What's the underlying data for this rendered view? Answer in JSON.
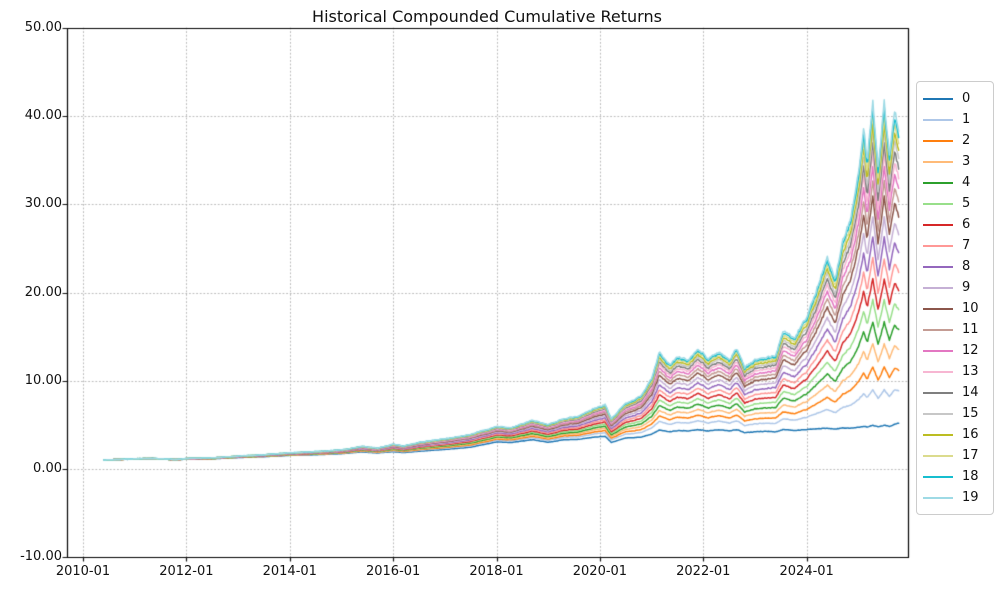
{
  "figure": {
    "background": "#ffffff"
  },
  "chart_data": {
    "type": "line",
    "title": "Historical Compounded Cumulative Returns",
    "xlabel": "",
    "ylabel": "",
    "legend_position": "outside right",
    "grid": "dotted, both axes",
    "ylim": [
      -10,
      50
    ],
    "xlim_years": [
      2009.69,
      2025.96
    ],
    "y_ticks": [
      -10,
      0,
      10,
      20,
      30,
      40,
      50
    ],
    "y_tick_labels": [
      "-10.00",
      "0.00",
      "10.00",
      "20.00",
      "30.00",
      "40.00",
      "50.00"
    ],
    "x_tick_years": [
      2010,
      2012,
      2014,
      2016,
      2018,
      2020,
      2022,
      2024
    ],
    "x_tick_labels": [
      "2010-01",
      "2012-01",
      "2014-01",
      "2016-01",
      "2018-01",
      "2020-01",
      "2022-01",
      "2024-01"
    ],
    "start_value": 1.0,
    "x_years": [
      2010.4,
      2010.7,
      2011.0,
      2011.3,
      2011.6,
      2011.8,
      2012.0,
      2012.5,
      2013.0,
      2013.5,
      2014.0,
      2014.5,
      2015.0,
      2015.4,
      2015.7,
      2016.0,
      2016.2,
      2016.5,
      2017.0,
      2017.5,
      2018.0,
      2018.3,
      2018.7,
      2019.0,
      2019.3,
      2019.6,
      2019.9,
      2020.1,
      2020.22,
      2020.5,
      2020.8,
      2021.0,
      2021.15,
      2021.35,
      2021.5,
      2021.7,
      2021.9,
      2022.1,
      2022.3,
      2022.5,
      2022.65,
      2022.8,
      2023.0,
      2023.2,
      2023.4,
      2023.55,
      2023.75,
      2024.0,
      2024.2,
      2024.4,
      2024.55,
      2024.7,
      2024.85,
      2025.0,
      2025.1,
      2025.17,
      2025.28,
      2025.38,
      2025.5,
      2025.6,
      2025.7,
      2025.78
    ],
    "model": {
      "description": "fan of 20 correlated curves: value_i(t) = base(t) + (top(t) - base(t)) * weight_i; base = series 0, top = series 19",
      "base": [
        1.0,
        1.05,
        1.1,
        1.12,
        1.08,
        1.02,
        1.1,
        1.14,
        1.28,
        1.38,
        1.52,
        1.6,
        1.72,
        1.92,
        1.8,
        1.95,
        1.85,
        2.0,
        2.2,
        2.45,
        3.05,
        3.0,
        3.3,
        3.0,
        3.3,
        3.35,
        3.6,
        3.7,
        3.0,
        3.5,
        3.6,
        3.95,
        4.4,
        4.2,
        4.35,
        4.3,
        4.45,
        4.3,
        4.45,
        4.3,
        4.45,
        4.1,
        4.2,
        4.25,
        4.2,
        4.45,
        4.35,
        4.45,
        4.55,
        4.6,
        4.5,
        4.65,
        4.6,
        4.7,
        4.8,
        4.75,
        4.95,
        4.75,
        4.95,
        4.8,
        5.05,
        5.2
      ],
      "top": [
        1.0,
        1.07,
        1.15,
        1.18,
        1.12,
        1.05,
        1.18,
        1.25,
        1.45,
        1.6,
        1.82,
        1.95,
        2.15,
        2.55,
        2.35,
        2.8,
        2.6,
        3.0,
        3.4,
        3.9,
        4.8,
        4.7,
        5.5,
        5.0,
        5.7,
        6.0,
        6.9,
        7.3,
        5.7,
        7.4,
        8.3,
        10.3,
        13.2,
        11.8,
        12.8,
        12.4,
        13.6,
        12.5,
        13.3,
        12.4,
        13.7,
        11.5,
        12.4,
        12.6,
        12.9,
        15.6,
        14.8,
        17.2,
        20.5,
        24.0,
        21.5,
        26.0,
        28.5,
        33.5,
        38.5,
        35.0,
        42.0,
        34.0,
        41.5,
        35.5,
        40.5,
        38.5
      ]
    },
    "series": [
      {
        "name": "0",
        "color": "#1f77b4",
        "weight": 0.0,
        "end_value": 5.2
      },
      {
        "name": "1",
        "color": "#aec7e8",
        "weight": 0.11,
        "end_value": 8.9
      },
      {
        "name": "2",
        "color": "#ff7f0e",
        "weight": 0.18,
        "end_value": 11.2
      },
      {
        "name": "3",
        "color": "#ffbb78",
        "weight": 0.251,
        "end_value": 13.6
      },
      {
        "name": "4",
        "color": "#2ca02c",
        "weight": 0.318,
        "end_value": 15.8
      },
      {
        "name": "5",
        "color": "#98df8a",
        "weight": 0.386,
        "end_value": 18.1
      },
      {
        "name": "6",
        "color": "#d62728",
        "weight": 0.451,
        "end_value": 20.2
      },
      {
        "name": "7",
        "color": "#ff9896",
        "weight": 0.515,
        "end_value": 22.4
      },
      {
        "name": "8",
        "color": "#9467bd",
        "weight": 0.58,
        "end_value": 24.5
      },
      {
        "name": "9",
        "color": "#c5b0d5",
        "weight": 0.645,
        "end_value": 26.7
      },
      {
        "name": "10",
        "color": "#8c564b",
        "weight": 0.707,
        "end_value": 28.7
      },
      {
        "name": "11",
        "color": "#c49c94",
        "weight": 0.755,
        "end_value": 30.3
      },
      {
        "name": "12",
        "color": "#e377c2",
        "weight": 0.8,
        "end_value": 31.8
      },
      {
        "name": "13",
        "color": "#f7b6d2",
        "weight": 0.839,
        "end_value": 33.1
      },
      {
        "name": "14",
        "color": "#7f7f7f",
        "weight": 0.873,
        "end_value": 34.3
      },
      {
        "name": "15",
        "color": "#c7c7c7",
        "weight": 0.904,
        "end_value": 35.3
      },
      {
        "name": "16",
        "color": "#bcbd22",
        "weight": 0.932,
        "end_value": 36.2
      },
      {
        "name": "17",
        "color": "#dbdb8d",
        "weight": 0.958,
        "end_value": 37.1
      },
      {
        "name": "18",
        "color": "#17becf",
        "weight": 0.98,
        "end_value": 37.8
      },
      {
        "name": "19",
        "color": "#9edae5",
        "weight": 1.0,
        "end_value": 38.5
      }
    ]
  },
  "colors": {
    "grid": "#b9b9b9",
    "spine": "#000000",
    "tick": "#111111",
    "legend_border": "#cccccc"
  }
}
